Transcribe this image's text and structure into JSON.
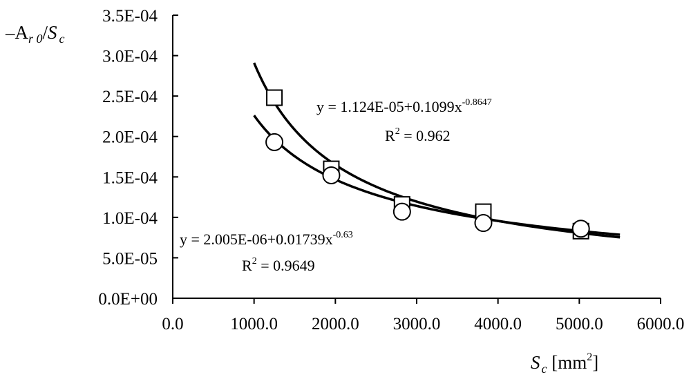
{
  "chart_data": {
    "type": "scatter",
    "title": "",
    "xlabel": {
      "var": "S",
      "sub": "c",
      "unit_pre": " [mm",
      "unit_sup": "2",
      "unit_post": "]"
    },
    "ylabel": {
      "pre": "–A",
      "sub1": "r 0",
      "slash": "/",
      "var": "S",
      "sub2": "c"
    },
    "xlim": [
      0,
      6000
    ],
    "ylim": [
      0,
      0.00035
    ],
    "x_ticks": [
      0,
      1000,
      2000,
      3000,
      4000,
      5000,
      6000
    ],
    "x_tick_labels": [
      "0.0",
      "1000.0",
      "2000.0",
      "3000.0",
      "4000.0",
      "5000.0",
      "6000.0"
    ],
    "y_ticks": [
      0,
      5e-05,
      0.0001,
      0.00015,
      0.0002,
      0.00025,
      0.0003,
      0.00035
    ],
    "y_tick_labels": [
      "0.0E+00",
      "5.0E-05",
      "1.0E-04",
      "1.5E-04",
      "2.0E-04",
      "2.5E-04",
      "3.0E-04",
      "3.5E-04"
    ],
    "grid": false,
    "legend": "none",
    "series": [
      {
        "marker": "square",
        "x": [
          1250,
          1950,
          2820,
          3820,
          5020
        ],
        "y": [
          0.000248,
          0.00016,
          0.000116,
          0.000107,
          8.3e-05
        ],
        "fit": {
          "a": 1.124e-05,
          "b": 0.1099,
          "c": -0.8647,
          "x_range": [
            1000,
            5500
          ]
        },
        "equation": {
          "pre": "y = 1.124E-05+0.1099x",
          "sup": "-0.8647"
        },
        "r2": {
          "pre": "R",
          "sup": "2",
          "post": " = 0.962"
        }
      },
      {
        "marker": "circle",
        "x": [
          1250,
          1950,
          2820,
          3820,
          5020
        ],
        "y": [
          0.000193,
          0.000152,
          0.000107,
          9.3e-05,
          8.6e-05
        ],
        "fit": {
          "a": 2.005e-06,
          "b": 0.01739,
          "c": -0.63,
          "x_range": [
            1000,
            5500
          ]
        },
        "equation": {
          "pre": "y = 2.005E-06+0.01739x",
          "sup": "-0.63"
        },
        "r2": {
          "pre": "R",
          "sup": "2",
          "post": " = 0.9649"
        }
      }
    ]
  }
}
